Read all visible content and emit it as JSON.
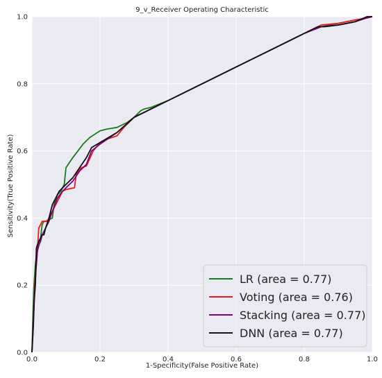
{
  "chart_data": {
    "type": "line",
    "title": "9_v_Receiver Operating Characteristic",
    "xlabel": "1-Specificity(False Positive Rate)",
    "ylabel": "Sensitivity(True Positive Rate)",
    "xlim": [
      0.0,
      1.0
    ],
    "ylim": [
      0.0,
      1.0
    ],
    "xticks": [
      "0.0",
      "0.2",
      "0.4",
      "0.6",
      "0.8",
      "1.0"
    ],
    "yticks": [
      "0.0",
      "0.2",
      "0.4",
      "0.6",
      "0.8",
      "1.0"
    ],
    "grid": true,
    "background": "#eaeaf2",
    "legend_position": "lower-right",
    "series": [
      {
        "name": "LR (area = 0.77)",
        "color": "#1a7a1a",
        "x": [
          0.0,
          0.003,
          0.006,
          0.01,
          0.014,
          0.018,
          0.024,
          0.03,
          0.035,
          0.04,
          0.05,
          0.06,
          0.065,
          0.075,
          0.085,
          0.095,
          0.1,
          0.12,
          0.15,
          0.17,
          0.2,
          0.22,
          0.25,
          0.28,
          0.3,
          0.32,
          0.33,
          0.35,
          0.4,
          0.5,
          0.6,
          0.7,
          0.8,
          0.85,
          0.9,
          0.95,
          0.98,
          1.0
        ],
        "y": [
          0.0,
          0.12,
          0.2,
          0.26,
          0.3,
          0.31,
          0.33,
          0.38,
          0.39,
          0.39,
          0.395,
          0.4,
          0.44,
          0.47,
          0.48,
          0.5,
          0.55,
          0.58,
          0.62,
          0.64,
          0.66,
          0.665,
          0.67,
          0.685,
          0.7,
          0.72,
          0.725,
          0.73,
          0.75,
          0.8,
          0.85,
          0.9,
          0.95,
          0.97,
          0.98,
          0.99,
          0.995,
          1.0
        ]
      },
      {
        "name": "Voting (area = 0.76)",
        "color": "#e41a1c",
        "x": [
          0.0,
          0.004,
          0.008,
          0.012,
          0.016,
          0.02,
          0.025,
          0.03,
          0.035,
          0.045,
          0.055,
          0.065,
          0.075,
          0.09,
          0.1,
          0.125,
          0.13,
          0.145,
          0.16,
          0.18,
          0.2,
          0.22,
          0.25,
          0.27,
          0.3,
          0.35,
          0.4,
          0.5,
          0.6,
          0.7,
          0.8,
          0.85,
          0.9,
          0.95,
          0.98,
          1.0
        ],
        "y": [
          0.0,
          0.08,
          0.2,
          0.25,
          0.3,
          0.37,
          0.38,
          0.39,
          0.39,
          0.39,
          0.41,
          0.43,
          0.45,
          0.48,
          0.485,
          0.49,
          0.53,
          0.55,
          0.555,
          0.6,
          0.625,
          0.635,
          0.645,
          0.67,
          0.7,
          0.725,
          0.75,
          0.8,
          0.85,
          0.9,
          0.95,
          0.975,
          0.98,
          0.99,
          0.995,
          1.0
        ]
      },
      {
        "name": "Stacking (area = 0.77)",
        "color": "#800080",
        "x": [
          0.0,
          0.004,
          0.008,
          0.012,
          0.016,
          0.02,
          0.025,
          0.03,
          0.04,
          0.05,
          0.06,
          0.075,
          0.09,
          0.1,
          0.12,
          0.14,
          0.16,
          0.175,
          0.2,
          0.25,
          0.3,
          0.35,
          0.4,
          0.5,
          0.6,
          0.7,
          0.8,
          0.85,
          0.9,
          0.95,
          0.98,
          1.0
        ],
        "y": [
          0.0,
          0.1,
          0.18,
          0.25,
          0.3,
          0.32,
          0.33,
          0.35,
          0.37,
          0.39,
          0.42,
          0.46,
          0.48,
          0.49,
          0.51,
          0.54,
          0.56,
          0.6,
          0.62,
          0.655,
          0.7,
          0.725,
          0.75,
          0.8,
          0.85,
          0.9,
          0.95,
          0.97,
          0.975,
          0.985,
          0.995,
          1.0
        ]
      },
      {
        "name": "DNN (area = 0.77)",
        "color": "#111111",
        "x": [
          0.0,
          0.004,
          0.007,
          0.01,
          0.013,
          0.016,
          0.02,
          0.025,
          0.03,
          0.035,
          0.04,
          0.05,
          0.06,
          0.07,
          0.08,
          0.09,
          0.1,
          0.12,
          0.14,
          0.16,
          0.175,
          0.2,
          0.25,
          0.3,
          0.35,
          0.4,
          0.5,
          0.6,
          0.7,
          0.8,
          0.84,
          0.86,
          0.9,
          0.95,
          0.985,
          1.0
        ],
        "y": [
          0.0,
          0.08,
          0.16,
          0.2,
          0.31,
          0.32,
          0.33,
          0.34,
          0.35,
          0.35,
          0.37,
          0.4,
          0.44,
          0.46,
          0.48,
          0.49,
          0.5,
          0.52,
          0.55,
          0.58,
          0.61,
          0.625,
          0.655,
          0.7,
          0.725,
          0.75,
          0.8,
          0.85,
          0.9,
          0.95,
          0.97,
          0.97,
          0.975,
          0.985,
          1.0,
          1.0
        ]
      }
    ]
  }
}
